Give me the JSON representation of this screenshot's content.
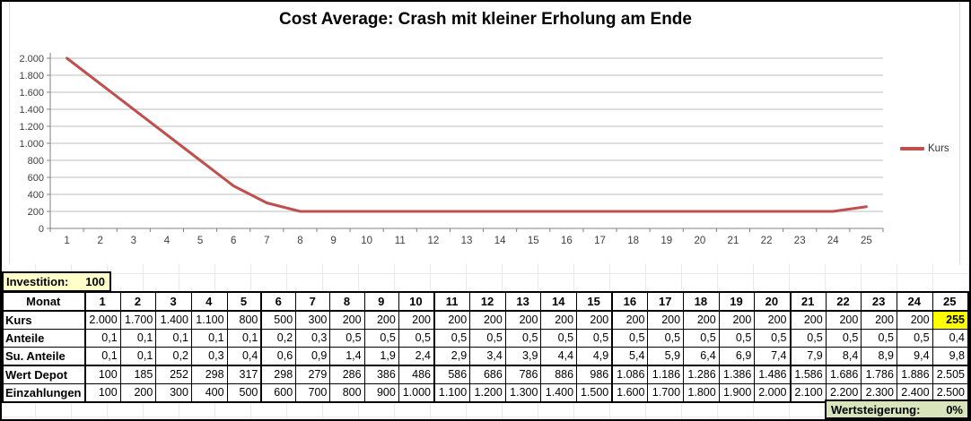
{
  "chart": {
    "line_color": "#c0504d",
    "axis_color": "#808080",
    "grid_color": "#c9c9c9",
    "label_color": "#404040"
  },
  "chart_data": {
    "type": "line",
    "title": "Cost Average: Crash mit kleiner Erholung am Ende",
    "x": [
      1,
      2,
      3,
      4,
      5,
      6,
      7,
      8,
      9,
      10,
      11,
      12,
      13,
      14,
      15,
      16,
      17,
      18,
      19,
      20,
      21,
      22,
      23,
      24,
      25
    ],
    "series": [
      {
        "name": "Kurs",
        "color": "#c0504d",
        "values": [
          2000,
          1700,
          1400,
          1100,
          800,
          500,
          300,
          200,
          200,
          200,
          200,
          200,
          200,
          200,
          200,
          200,
          200,
          200,
          200,
          200,
          200,
          200,
          200,
          200,
          255
        ]
      }
    ],
    "xlabel": "",
    "ylabel": "",
    "ylim": [
      0,
      2000
    ],
    "ytick_step": 200,
    "ytick_labels": [
      "0",
      "200",
      "400",
      "600",
      "800",
      "1.000",
      "1.200",
      "1.400",
      "1.600",
      "1.800",
      "2.000"
    ],
    "grid": true,
    "legend_position": "right"
  },
  "table": {
    "investition": {
      "label": "Investition:",
      "value": "100"
    },
    "header_label": "Monat",
    "months": [
      "1",
      "2",
      "3",
      "4",
      "5",
      "6",
      "7",
      "8",
      "9",
      "10",
      "11",
      "12",
      "13",
      "14",
      "15",
      "16",
      "17",
      "18",
      "19",
      "20",
      "21",
      "22",
      "23",
      "24",
      "25"
    ],
    "rows": [
      {
        "key": "kurs",
        "label": "Kurs",
        "highlight_last": true,
        "values": [
          "2.000",
          "1.700",
          "1.400",
          "1.100",
          "800",
          "500",
          "300",
          "200",
          "200",
          "200",
          "200",
          "200",
          "200",
          "200",
          "200",
          "200",
          "200",
          "200",
          "200",
          "200",
          "200",
          "200",
          "200",
          "200",
          "255"
        ]
      },
      {
        "key": "anteile",
        "label": "Anteile",
        "values": [
          "0,1",
          "0,1",
          "0,1",
          "0,1",
          "0,1",
          "0,2",
          "0,3",
          "0,5",
          "0,5",
          "0,5",
          "0,5",
          "0,5",
          "0,5",
          "0,5",
          "0,5",
          "0,5",
          "0,5",
          "0,5",
          "0,5",
          "0,5",
          "0,5",
          "0,5",
          "0,5",
          "0,5",
          "0,4"
        ]
      },
      {
        "key": "su-anteile",
        "label": "Su. Anteile",
        "thick_bottom": true,
        "values": [
          "0,1",
          "0,1",
          "0,2",
          "0,3",
          "0,4",
          "0,6",
          "0,9",
          "1,4",
          "1,9",
          "2,4",
          "2,9",
          "3,4",
          "3,9",
          "4,4",
          "4,9",
          "5,4",
          "5,9",
          "6,4",
          "6,9",
          "7,4",
          "7,9",
          "8,4",
          "8,9",
          "9,4",
          "9,8"
        ]
      },
      {
        "key": "wert-depot",
        "label": "Wert Depot",
        "values": [
          "100",
          "185",
          "252",
          "298",
          "317",
          "298",
          "279",
          "286",
          "386",
          "486",
          "586",
          "686",
          "786",
          "886",
          "986",
          "1.086",
          "1.186",
          "1.286",
          "1.386",
          "1.486",
          "1.586",
          "1.686",
          "1.786",
          "1.886",
          "2.505"
        ]
      },
      {
        "key": "einzahlungen",
        "label": "Einzahlungen",
        "values": [
          "100",
          "200",
          "300",
          "400",
          "500",
          "600",
          "700",
          "800",
          "900",
          "1.000",
          "1.100",
          "1.200",
          "1.300",
          "1.400",
          "1.500",
          "1.600",
          "1.700",
          "1.800",
          "1.900",
          "2.000",
          "2.100",
          "2.200",
          "2.300",
          "2.400",
          "2.500"
        ]
      }
    ],
    "wertsteigerung": {
      "label": "Wertsteigerung:",
      "value": "0%"
    },
    "highlight_color": "#ffff00"
  }
}
